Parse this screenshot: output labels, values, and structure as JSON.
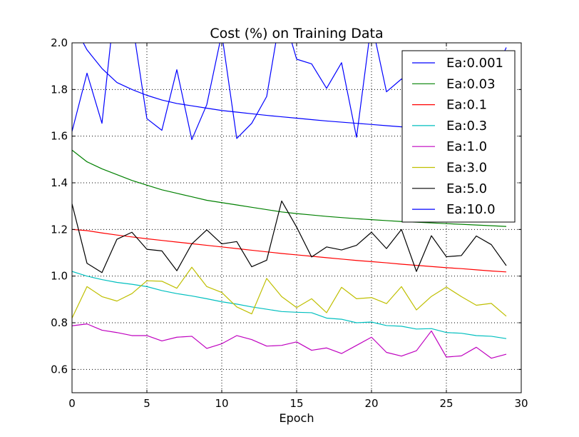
{
  "chart_data": {
    "type": "line",
    "title": "Cost (%) on Training Data",
    "xlabel": "Epoch",
    "ylabel": "",
    "xlim": [
      0,
      30
    ],
    "ylim": [
      0.5,
      2.0
    ],
    "xticks": [
      0,
      5,
      10,
      15,
      20,
      25,
      30
    ],
    "yticks": [
      0.6,
      0.8,
      1.0,
      1.2,
      1.4,
      1.6,
      1.8,
      2.0
    ],
    "xtick_labels": [
      "0",
      "5",
      "10",
      "15",
      "20",
      "25",
      "30"
    ],
    "ytick_labels": [
      "0.6",
      "0.8",
      "1.0",
      "1.2",
      "1.4",
      "1.6",
      "1.8",
      "2.0"
    ],
    "grid": true,
    "legend_position": "top-right",
    "x": [
      0,
      1,
      2,
      3,
      4,
      5,
      6,
      7,
      8,
      9,
      10,
      11,
      12,
      13,
      14,
      15,
      16,
      17,
      18,
      19,
      20,
      21,
      22,
      23,
      24,
      25,
      26,
      27,
      28,
      29
    ],
    "series": [
      {
        "name": "Ea:0.001",
        "color": "#0000ff",
        "values": [
          2.09,
          1.97,
          1.89,
          1.83,
          1.8,
          1.775,
          1.755,
          1.74,
          1.73,
          1.72,
          1.71,
          1.703,
          1.696,
          1.689,
          1.683,
          1.677,
          1.671,
          1.665,
          1.66,
          1.655,
          1.65,
          1.645,
          1.64,
          1.635,
          1.63,
          1.625,
          1.62,
          1.615,
          1.61,
          1.605
        ]
      },
      {
        "name": "Ea:0.03",
        "color": "#008000",
        "values": [
          1.54,
          1.49,
          1.46,
          1.435,
          1.41,
          1.39,
          1.37,
          1.355,
          1.34,
          1.325,
          1.315,
          1.305,
          1.295,
          1.285,
          1.275,
          1.268,
          1.262,
          1.256,
          1.251,
          1.246,
          1.242,
          1.238,
          1.234,
          1.231,
          1.228,
          1.225,
          1.222,
          1.219,
          1.216,
          1.213
        ]
      },
      {
        "name": "Ea:0.1",
        "color": "#ff0000",
        "values": [
          1.2,
          1.195,
          1.185,
          1.176,
          1.168,
          1.16,
          1.153,
          1.146,
          1.139,
          1.132,
          1.125,
          1.118,
          1.111,
          1.104,
          1.097,
          1.091,
          1.085,
          1.079,
          1.073,
          1.067,
          1.062,
          1.057,
          1.051,
          1.046,
          1.041,
          1.036,
          1.032,
          1.027,
          1.022,
          1.018
        ]
      },
      {
        "name": "Ea:0.3",
        "color": "#00bfbf",
        "values": [
          1.02,
          1.0,
          0.985,
          0.973,
          0.965,
          0.955,
          0.938,
          0.925,
          0.915,
          0.903,
          0.89,
          0.88,
          0.868,
          0.858,
          0.848,
          0.845,
          0.843,
          0.82,
          0.815,
          0.8,
          0.803,
          0.788,
          0.785,
          0.773,
          0.775,
          0.758,
          0.755,
          0.745,
          0.742,
          0.732
        ]
      },
      {
        "name": "Ea:1.0",
        "color": "#bf00bf",
        "values": [
          0.787,
          0.795,
          0.768,
          0.758,
          0.745,
          0.745,
          0.722,
          0.738,
          0.742,
          0.69,
          0.71,
          0.745,
          0.728,
          0.7,
          0.703,
          0.718,
          0.682,
          0.692,
          0.668,
          0.703,
          0.738,
          0.673,
          0.657,
          0.68,
          0.765,
          0.653,
          0.658,
          0.695,
          0.648,
          0.665
        ]
      },
      {
        "name": "Ea:3.0",
        "color": "#bfbf00",
        "values": [
          0.82,
          0.955,
          0.912,
          0.893,
          0.925,
          0.98,
          0.978,
          0.948,
          1.038,
          0.955,
          0.93,
          0.868,
          0.838,
          0.99,
          0.912,
          0.865,
          0.903,
          0.843,
          0.952,
          0.903,
          0.908,
          0.882,
          0.955,
          0.855,
          0.913,
          0.953,
          0.912,
          0.875,
          0.883,
          0.828
        ]
      },
      {
        "name": "Ea:5.0",
        "color": "#000000",
        "values": [
          1.31,
          1.055,
          1.015,
          1.158,
          1.188,
          1.115,
          1.108,
          1.023,
          1.138,
          1.198,
          1.138,
          1.148,
          1.04,
          1.068,
          1.322,
          1.21,
          1.082,
          1.125,
          1.112,
          1.132,
          1.188,
          1.118,
          1.2,
          1.02,
          1.173,
          1.083,
          1.088,
          1.172,
          1.135,
          1.045
        ]
      },
      {
        "name": "Ea:10.0",
        "color": "#0000ff",
        "values": [
          1.62,
          1.87,
          1.655,
          2.25,
          2.1,
          1.675,
          1.625,
          1.885,
          1.585,
          1.735,
          2.04,
          1.59,
          1.655,
          1.77,
          2.15,
          1.93,
          1.91,
          1.805,
          1.915,
          1.595,
          2.09,
          1.79,
          1.845,
          1.795,
          1.94,
          1.88,
          1.86,
          1.79,
          1.84,
          1.98
        ]
      }
    ]
  }
}
